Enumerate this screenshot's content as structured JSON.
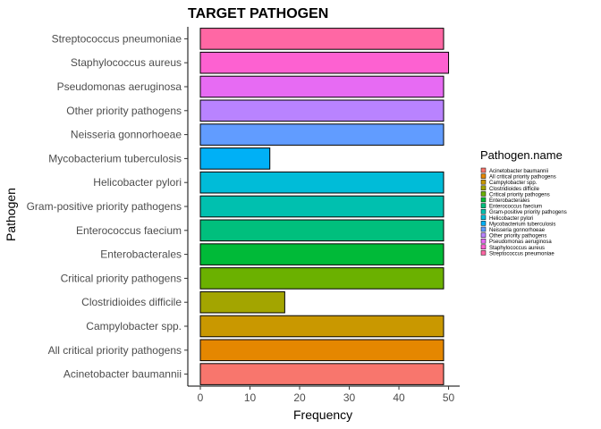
{
  "chart_data": {
    "type": "bar",
    "orientation": "horizontal",
    "title": "TARGET PATHOGEN",
    "xlabel": "Frequency",
    "ylabel": "Pathogen",
    "xlim": [
      0,
      52
    ],
    "xticks": [
      0,
      10,
      20,
      30,
      40,
      50
    ],
    "grid": false,
    "legend_title": "Pathogen.name",
    "legend_position": "right",
    "categories": [
      "Acinetobacter baumannii",
      "All critical priority pathogens",
      "Campylobacter spp.",
      "Clostridioides difficile",
      "Critical priority pathogens",
      "Enterobacterales",
      "Enterococcus faecium",
      "Gram-positive priority pathogens",
      "Helicobacter pylori",
      "Mycobacterium tuberculosis",
      "Neisseria gonnorhoeae",
      "Other priority pathogens",
      "Pseudomonas aeruginosa",
      "Staphylococcus aureus",
      "Streptococcus pneumoniae"
    ],
    "values": [
      49,
      49,
      49,
      17,
      49,
      49,
      49,
      49,
      49,
      14,
      49,
      49,
      49,
      50,
      49
    ],
    "colors": [
      "#F8766D",
      "#E58700",
      "#C99800",
      "#A3A500",
      "#6BB100",
      "#00BA38",
      "#00BF7D",
      "#00C0AF",
      "#00BCD8",
      "#00B0F6",
      "#619CFF",
      "#B983FF",
      "#E76BF3",
      "#FD61D1",
      "#FF67A4"
    ]
  }
}
